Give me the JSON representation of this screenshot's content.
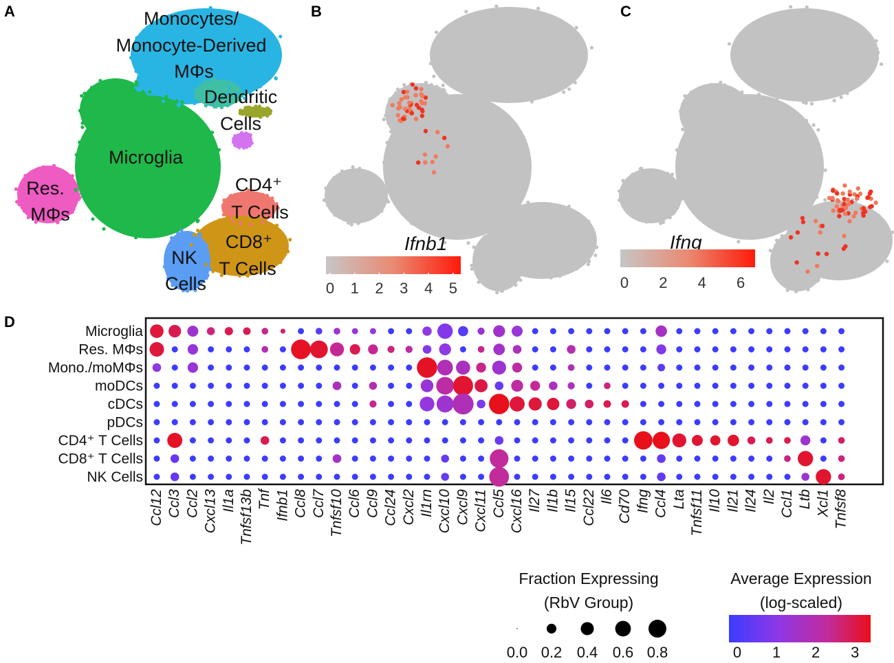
{
  "panels": {
    "A": {
      "letter": "A",
      "clusters": [
        {
          "name": "monocytes",
          "lines": [
            "Monocytes/",
            "Monocyte-Derived",
            "MΦs"
          ],
          "color": "#29b5e3"
        },
        {
          "name": "dendritic",
          "lines": [
            "Dendritic",
            "Cells"
          ],
          "color": "#3fbfa3"
        },
        {
          "name": "microglia",
          "lines": [
            "Microglia"
          ],
          "color": "#1fb84a"
        },
        {
          "name": "res-mphi",
          "lines": [
            "Res.",
            "MΦs"
          ],
          "color": "#ee5bc1"
        },
        {
          "name": "cd4",
          "lines": [
            "CD4⁺",
            "T Cells"
          ],
          "color": "#f0776f"
        },
        {
          "name": "cd8",
          "lines": [
            "CD8⁺",
            "T Cells"
          ],
          "color": "#cf9516"
        },
        {
          "name": "nk",
          "lines": [
            "NK",
            "Cells"
          ],
          "color": "#5b9df2"
        }
      ],
      "extra_colors": {
        "pdc": "#9aa62b",
        "cdc": "#d373f0"
      }
    },
    "B": {
      "letter": "B",
      "gene": "Ifnb1",
      "scale_ticks": [
        "0",
        "1",
        "2",
        "3",
        "4",
        "5"
      ],
      "scale_max": 5.2
    },
    "C": {
      "letter": "C",
      "gene": "Ifng",
      "scale_ticks": [
        "0",
        "2",
        "4",
        "6"
      ],
      "scale_max": 6.6
    },
    "D": {
      "letter": "D"
    }
  },
  "chart_data": {
    "type": "dotplot",
    "title": "",
    "rows": [
      "Microglia",
      "Res. MΦs",
      "Mono./moMΦs",
      "moDCs",
      "cDCs",
      "pDCs",
      "CD4⁺ T Cells",
      "CD8⁺ T Cells",
      "NK Cells"
    ],
    "columns": [
      "Ccl12",
      "Ccl3",
      "Ccl2",
      "Cxcl13",
      "Il1a",
      "Tnfsf13b",
      "Tnf",
      "Ifnb1",
      "Ccl8",
      "Ccl7",
      "Tnfsf10",
      "Ccl6",
      "Ccl9",
      "Ccl24",
      "Cxcl2",
      "Il1rn",
      "Cxcl10",
      "Cxcl9",
      "Cxcl11",
      "Ccl5",
      "Cxcl16",
      "Il27",
      "Il1b",
      "Il15",
      "Ccl22",
      "Il6",
      "Cd70",
      "Ifng",
      "Ccl4",
      "Lta",
      "Tnfsf11",
      "Il10",
      "Il21",
      "Il24",
      "Il2",
      "Ccl1",
      "Ltb",
      "Xcl1",
      "Tnfsf8"
    ],
    "highlighted_columns": [
      "Ifnb1",
      "Ifng"
    ],
    "highlight_color": "#e41a1c",
    "points": [
      {
        "row": "Microglia",
        "gene": "Ccl12",
        "frac": 0.3,
        "expr": 3.2
      },
      {
        "row": "Microglia",
        "gene": "Ccl3",
        "frac": 0.25,
        "expr": 3.0
      },
      {
        "row": "Microglia",
        "gene": "Ccl2",
        "frac": 0.18,
        "expr": 1.5
      },
      {
        "row": "Microglia",
        "gene": "Cxcl13",
        "frac": 0.08,
        "expr": 2.6
      },
      {
        "row": "Microglia",
        "gene": "Il1a",
        "frac": 0.09,
        "expr": 3.0
      },
      {
        "row": "Microglia",
        "gene": "Tnfsf13b",
        "frac": 0.07,
        "expr": 3.0
      },
      {
        "row": "Microglia",
        "gene": "Tnf",
        "frac": 0.05,
        "expr": 2.5
      },
      {
        "row": "Microglia",
        "gene": "Ifnb1",
        "frac": 0.02,
        "expr": 2.8
      },
      {
        "row": "Microglia",
        "gene": "Ccl7",
        "frac": 0.05,
        "expr": 0.4
      },
      {
        "row": "Microglia",
        "gene": "Tnfsf10",
        "frac": 0.05,
        "expr": 1.6
      },
      {
        "row": "Microglia",
        "gene": "Ccl6",
        "frac": 0.04,
        "expr": 1.4
      },
      {
        "row": "Microglia",
        "gene": "Ccl9",
        "frac": 0.04,
        "expr": 1.3
      },
      {
        "row": "Microglia",
        "gene": "Il1rn",
        "frac": 0.12,
        "expr": 1.2
      },
      {
        "row": "Microglia",
        "gene": "Cxcl10",
        "frac": 0.4,
        "expr": 1.0
      },
      {
        "row": "Microglia",
        "gene": "Cxcl9",
        "frac": 0.15,
        "expr": 0.4
      },
      {
        "row": "Microglia",
        "gene": "Cxcl11",
        "frac": 0.06,
        "expr": 1.5
      },
      {
        "row": "Microglia",
        "gene": "Ccl5",
        "frac": 0.22,
        "expr": 1.6
      },
      {
        "row": "Microglia",
        "gene": "Cxcl16",
        "frac": 0.18,
        "expr": 1.4
      },
      {
        "row": "Microglia",
        "gene": "Ccl4",
        "frac": 0.2,
        "expr": 1.7
      },
      {
        "row": "Res. MΦs",
        "gene": "Ccl12",
        "frac": 0.35,
        "expr": 3.2
      },
      {
        "row": "Res. MΦs",
        "gene": "Ccl2",
        "frac": 0.16,
        "expr": 1.4
      },
      {
        "row": "Res. MΦs",
        "gene": "Tnf",
        "frac": 0.05,
        "expr": 2.0
      },
      {
        "row": "Res. MΦs",
        "gene": "Ccl8",
        "frac": 0.7,
        "expr": 3.4
      },
      {
        "row": "Res. MΦs",
        "gene": "Ccl7",
        "frac": 0.55,
        "expr": 3.3
      },
      {
        "row": "Res. MΦs",
        "gene": "Tnfsf10",
        "frac": 0.32,
        "expr": 2.4
      },
      {
        "row": "Res. MΦs",
        "gene": "Ccl6",
        "frac": 0.16,
        "expr": 3.0
      },
      {
        "row": "Res. MΦs",
        "gene": "Ccl9",
        "frac": 0.14,
        "expr": 2.4
      },
      {
        "row": "Res. MΦs",
        "gene": "Ccl24",
        "frac": 0.06,
        "expr": 2.6
      },
      {
        "row": "Res. MΦs",
        "gene": "Cxcl2",
        "frac": 0.06,
        "expr": 2.2
      },
      {
        "row": "Res. MΦs",
        "gene": "Il1rn",
        "frac": 0.1,
        "expr": 1.0
      },
      {
        "row": "Res. MΦs",
        "gene": "Cxcl10",
        "frac": 0.22,
        "expr": 1.2
      },
      {
        "row": "Res. MΦs",
        "gene": "Cxcl11",
        "frac": 0.05,
        "expr": 2.5
      },
      {
        "row": "Res. MΦs",
        "gene": "Ccl5",
        "frac": 0.2,
        "expr": 1.6
      },
      {
        "row": "Res. MΦs",
        "gene": "Cxcl16",
        "frac": 0.1,
        "expr": 1.8
      },
      {
        "row": "Res. MΦs",
        "gene": "Il15",
        "frac": 0.1,
        "expr": 2.0
      },
      {
        "row": "Res. MΦs",
        "gene": "Ccl4",
        "frac": 0.14,
        "expr": 1.0
      },
      {
        "row": "Mono./moMΦs",
        "gene": "Ccl12",
        "frac": 0.1,
        "expr": 1.2
      },
      {
        "row": "Mono./moMΦs",
        "gene": "Ccl2",
        "frac": 0.16,
        "expr": 1.4
      },
      {
        "row": "Mono./moMΦs",
        "gene": "Il1rn",
        "frac": 0.75,
        "expr": 3.4
      },
      {
        "row": "Mono./moMΦs",
        "gene": "Cxcl10",
        "frac": 0.42,
        "expr": 1.9
      },
      {
        "row": "Mono./moMΦs",
        "gene": "Cxcl9",
        "frac": 0.33,
        "expr": 1.8
      },
      {
        "row": "Mono./moMΦs",
        "gene": "Cxcl11",
        "frac": 0.14,
        "expr": 2.5
      },
      {
        "row": "Mono./moMΦs",
        "gene": "Ccl5",
        "frac": 0.32,
        "expr": 1.5
      },
      {
        "row": "Mono./moMΦs",
        "gene": "Cxcl16",
        "frac": 0.14,
        "expr": 2.2
      },
      {
        "row": "Mono./moMΦs",
        "gene": "Il15",
        "frac": 0.05,
        "expr": 1.9
      },
      {
        "row": "Mono./moMΦs",
        "gene": "Ccl4",
        "frac": 0.07,
        "expr": 0.5
      },
      {
        "row": "moDCs",
        "gene": "Tnfsf10",
        "frac": 0.1,
        "expr": 1.8
      },
      {
        "row": "moDCs",
        "gene": "Ccl9",
        "frac": 0.08,
        "expr": 2.0
      },
      {
        "row": "moDCs",
        "gene": "Il1rn",
        "frac": 0.26,
        "expr": 1.4
      },
      {
        "row": "moDCs",
        "gene": "Cxcl10",
        "frac": 0.55,
        "expr": 2.2
      },
      {
        "row": "moDCs",
        "gene": "Cxcl9",
        "frac": 0.72,
        "expr": 3.3
      },
      {
        "row": "moDCs",
        "gene": "Cxcl11",
        "frac": 0.27,
        "expr": 3.1
      },
      {
        "row": "moDCs",
        "gene": "Ccl5",
        "frac": 0.1,
        "expr": 0.6
      },
      {
        "row": "moDCs",
        "gene": "Cxcl16",
        "frac": 0.22,
        "expr": 2.2
      },
      {
        "row": "moDCs",
        "gene": "Il27",
        "frac": 0.14,
        "expr": 2.4
      },
      {
        "row": "moDCs",
        "gene": "Il1b",
        "frac": 0.1,
        "expr": 1.8
      },
      {
        "row": "moDCs",
        "gene": "Il15",
        "frac": 0.06,
        "expr": 1.8
      },
      {
        "row": "moDCs",
        "gene": "Il6",
        "frac": 0.05,
        "expr": 2.6
      },
      {
        "row": "cDCs",
        "gene": "Ccl9",
        "frac": 0.06,
        "expr": 2.4
      },
      {
        "row": "cDCs",
        "gene": "Il1rn",
        "frac": 0.36,
        "expr": 1.3
      },
      {
        "row": "cDCs",
        "gene": "Cxcl10",
        "frac": 0.5,
        "expr": 1.5
      },
      {
        "row": "cDCs",
        "gene": "Cxcl9",
        "frac": 0.8,
        "expr": 1.9
      },
      {
        "row": "cDCs",
        "gene": "Cxcl11",
        "frac": 0.1,
        "expr": 0.9
      },
      {
        "row": "cDCs",
        "gene": "Ccl5",
        "frac": 0.75,
        "expr": 3.5
      },
      {
        "row": "cDCs",
        "gene": "Cxcl16",
        "frac": 0.38,
        "expr": 3.2
      },
      {
        "row": "cDCs",
        "gene": "Il27",
        "frac": 0.28,
        "expr": 3.2
      },
      {
        "row": "cDCs",
        "gene": "Il1b",
        "frac": 0.24,
        "expr": 3.2
      },
      {
        "row": "cDCs",
        "gene": "Il15",
        "frac": 0.14,
        "expr": 2.8
      },
      {
        "row": "cDCs",
        "gene": "Ccl22",
        "frac": 0.1,
        "expr": 2.8
      },
      {
        "row": "cDCs",
        "gene": "Il6",
        "frac": 0.07,
        "expr": 3.0
      },
      {
        "row": "cDCs",
        "gene": "Cd70",
        "frac": 0.07,
        "expr": 3.0
      },
      {
        "row": "CD4⁺ T Cells",
        "gene": "Ccl3",
        "frac": 0.38,
        "expr": 3.4
      },
      {
        "row": "CD4⁺ T Cells",
        "gene": "Tnf",
        "frac": 0.1,
        "expr": 3.0
      },
      {
        "row": "CD4⁺ T Cells",
        "gene": "Ccl5",
        "frac": 0.1,
        "expr": 0.7
      },
      {
        "row": "CD4⁺ T Cells",
        "gene": "Ifng",
        "frac": 0.6,
        "expr": 3.5
      },
      {
        "row": "CD4⁺ T Cells",
        "gene": "Ccl4",
        "frac": 0.52,
        "expr": 3.5
      },
      {
        "row": "CD4⁺ T Cells",
        "gene": "Lta",
        "frac": 0.32,
        "expr": 3.3
      },
      {
        "row": "CD4⁺ T Cells",
        "gene": "Tnfsf11",
        "frac": 0.18,
        "expr": 3.3
      },
      {
        "row": "CD4⁺ T Cells",
        "gene": "Il10",
        "frac": 0.15,
        "expr": 3.3
      },
      {
        "row": "CD4⁺ T Cells",
        "gene": "Il21",
        "frac": 0.2,
        "expr": 3.3
      },
      {
        "row": "CD4⁺ T Cells",
        "gene": "Il24",
        "frac": 0.08,
        "expr": 3.0
      },
      {
        "row": "CD4⁺ T Cells",
        "gene": "Il2",
        "frac": 0.05,
        "expr": 3.0
      },
      {
        "row": "CD4⁺ T Cells",
        "gene": "Ccl1",
        "frac": 0.05,
        "expr": 3.0
      },
      {
        "row": "CD4⁺ T Cells",
        "gene": "Ltb",
        "frac": 0.14,
        "expr": 1.5
      },
      {
        "row": "CD4⁺ T Cells",
        "gene": "Tnfsf8",
        "frac": 0.05,
        "expr": 2.8
      },
      {
        "row": "CD8⁺ T Cells",
        "gene": "Ccl3",
        "frac": 0.1,
        "expr": 0.6
      },
      {
        "row": "CD8⁺ T Cells",
        "gene": "Tnfsf10",
        "frac": 0.1,
        "expr": 1.6
      },
      {
        "row": "CD8⁺ T Cells",
        "gene": "Cxcl10",
        "frac": 0.08,
        "expr": 0.6
      },
      {
        "row": "CD8⁺ T Cells",
        "gene": "Ccl5",
        "frac": 0.62,
        "expr": 2.3
      },
      {
        "row": "CD8⁺ T Cells",
        "gene": "Ccl4",
        "frac": 0.1,
        "expr": 0.6
      },
      {
        "row": "CD8⁺ T Cells",
        "gene": "Ccl1",
        "frac": 0.05,
        "expr": 2.6
      },
      {
        "row": "CD8⁺ T Cells",
        "gene": "Ltb",
        "frac": 0.4,
        "expr": 3.3
      },
      {
        "row": "CD8⁺ T Cells",
        "gene": "Tnfsf8",
        "frac": 0.05,
        "expr": 2.6
      },
      {
        "row": "NK Cells",
        "gene": "Ccl3",
        "frac": 0.1,
        "expr": 0.6
      },
      {
        "row": "NK Cells",
        "gene": "Cxcl10",
        "frac": 0.08,
        "expr": 0.6
      },
      {
        "row": "NK Cells",
        "gene": "Ccl5",
        "frac": 0.7,
        "expr": 2.3
      },
      {
        "row": "NK Cells",
        "gene": "Ccl4",
        "frac": 0.1,
        "expr": 0.6
      },
      {
        "row": "NK Cells",
        "gene": "Ltb",
        "frac": 0.08,
        "expr": 1.5
      },
      {
        "row": "NK Cells",
        "gene": "Xcl1",
        "frac": 0.4,
        "expr": 3.3
      },
      {
        "row": "NK Cells",
        "gene": "Tnfsf8",
        "frac": 0.05,
        "expr": 2.6
      }
    ],
    "default_point": {
      "frac": 0.04,
      "expr": 0.0
    },
    "size_legend": {
      "title_lines": [
        "Fraction Expressing",
        "(RbV Group)"
      ],
      "values": [
        0.0,
        0.2,
        0.4,
        0.6,
        0.8
      ],
      "labels": [
        "0.0",
        "0.2",
        "0.4",
        "0.6",
        "0.8"
      ]
    },
    "color_legend": {
      "title_lines": [
        "Average Expression",
        "(log-scaled)"
      ],
      "range": [
        0,
        3.5
      ],
      "ticks": [
        "0",
        "1",
        "2",
        "3"
      ],
      "colors": [
        "#3c3cff",
        "#8e38e6",
        "#c22b9a",
        "#e8101a"
      ]
    }
  }
}
